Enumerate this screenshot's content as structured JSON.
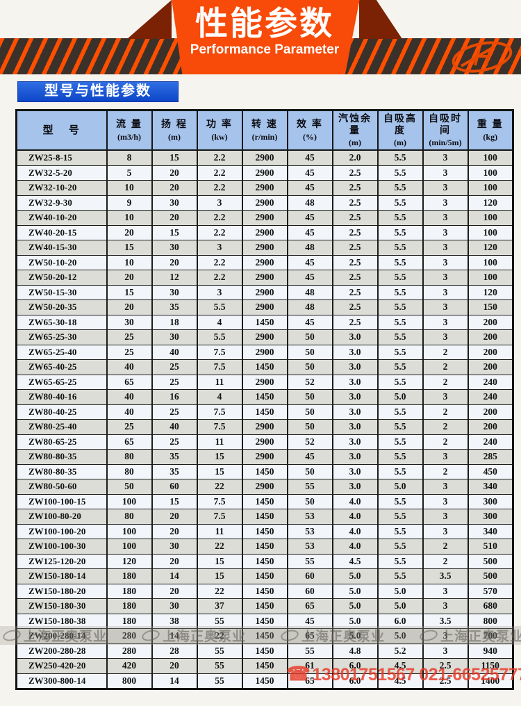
{
  "banner": {
    "title": "性能参数",
    "subtitle": "Performance Parameter"
  },
  "section_label": "型号与性能参数",
  "table": {
    "columns": [
      {
        "name": "型  号",
        "unit": ""
      },
      {
        "name": "流 量",
        "unit": "(m3/h)"
      },
      {
        "name": "扬 程",
        "unit": "(m)"
      },
      {
        "name": "功 率",
        "unit": "(kw)"
      },
      {
        "name": "转 速",
        "unit": "(r/min)"
      },
      {
        "name": "效 率",
        "unit": "(%)"
      },
      {
        "name": "汽蚀余量",
        "unit": "(m)"
      },
      {
        "name": "自吸高度",
        "unit": "(m)"
      },
      {
        "name": "自吸时间",
        "unit": "(min/5m)"
      },
      {
        "name": "重 量",
        "unit": "(kg)"
      }
    ],
    "rows": [
      [
        "ZW25-8-15",
        "8",
        "15",
        "2.2",
        "2900",
        "45",
        "2.0",
        "5.5",
        "3",
        "100"
      ],
      [
        "ZW32-5-20",
        "5",
        "20",
        "2.2",
        "2900",
        "45",
        "2.5",
        "5.5",
        "3",
        "100"
      ],
      [
        "ZW32-10-20",
        "10",
        "20",
        "2.2",
        "2900",
        "45",
        "2.5",
        "5.5",
        "3",
        "100"
      ],
      [
        "ZW32-9-30",
        "9",
        "30",
        "3",
        "2900",
        "48",
        "2.5",
        "5.5",
        "3",
        "120"
      ],
      [
        "ZW40-10-20",
        "10",
        "20",
        "2.2",
        "2900",
        "45",
        "2.5",
        "5.5",
        "3",
        "100"
      ],
      [
        "ZW40-20-15",
        "20",
        "15",
        "2.2",
        "2900",
        "45",
        "2.5",
        "5.5",
        "3",
        "100"
      ],
      [
        "ZW40-15-30",
        "15",
        "30",
        "3",
        "2900",
        "48",
        "2.5",
        "5.5",
        "3",
        "120"
      ],
      [
        "ZW50-10-20",
        "10",
        "20",
        "2.2",
        "2900",
        "45",
        "2.5",
        "5.5",
        "3",
        "100"
      ],
      [
        "ZW50-20-12",
        "20",
        "12",
        "2.2",
        "2900",
        "45",
        "2.5",
        "5.5",
        "3",
        "100"
      ],
      [
        "ZW50-15-30",
        "15",
        "30",
        "3",
        "2900",
        "48",
        "2.5",
        "5.5",
        "3",
        "120"
      ],
      [
        "ZW50-20-35",
        "20",
        "35",
        "5.5",
        "2900",
        "48",
        "2.5",
        "5.5",
        "3",
        "150"
      ],
      [
        "ZW65-30-18",
        "30",
        "18",
        "4",
        "1450",
        "45",
        "2.5",
        "5.5",
        "3",
        "200"
      ],
      [
        "ZW65-25-30",
        "25",
        "30",
        "5.5",
        "2900",
        "50",
        "3.0",
        "5.5",
        "3",
        "200"
      ],
      [
        "ZW65-25-40",
        "25",
        "40",
        "7.5",
        "2900",
        "50",
        "3.0",
        "5.5",
        "2",
        "200"
      ],
      [
        "ZW65-40-25",
        "40",
        "25",
        "7.5",
        "1450",
        "50",
        "3.0",
        "5.5",
        "2",
        "200"
      ],
      [
        "ZW65-65-25",
        "65",
        "25",
        "11",
        "2900",
        "52",
        "3.0",
        "5.5",
        "2",
        "240"
      ],
      [
        "ZW80-40-16",
        "40",
        "16",
        "4",
        "1450",
        "50",
        "3.0",
        "5.0",
        "3",
        "240"
      ],
      [
        "ZW80-40-25",
        "40",
        "25",
        "7.5",
        "1450",
        "50",
        "3.0",
        "5.5",
        "2",
        "200"
      ],
      [
        "ZW80-25-40",
        "25",
        "40",
        "7.5",
        "2900",
        "50",
        "3.0",
        "5.5",
        "2",
        "200"
      ],
      [
        "ZW80-65-25",
        "65",
        "25",
        "11",
        "2900",
        "52",
        "3.0",
        "5.5",
        "2",
        "240"
      ],
      [
        "ZW80-80-35",
        "80",
        "35",
        "15",
        "2900",
        "45",
        "3.0",
        "5.5",
        "3",
        "285"
      ],
      [
        "ZW80-80-35",
        "80",
        "35",
        "15",
        "1450",
        "50",
        "3.0",
        "5.5",
        "2",
        "450"
      ],
      [
        "ZW80-50-60",
        "50",
        "60",
        "22",
        "2900",
        "55",
        "3.0",
        "5.0",
        "3",
        "340"
      ],
      [
        "ZW100-100-15",
        "100",
        "15",
        "7.5",
        "1450",
        "50",
        "4.0",
        "5.5",
        "3",
        "300"
      ],
      [
        "ZW100-80-20",
        "80",
        "20",
        "7.5",
        "1450",
        "53",
        "4.0",
        "5.5",
        "3",
        "300"
      ],
      [
        "ZW100-100-20",
        "100",
        "20",
        "11",
        "1450",
        "53",
        "4.0",
        "5.5",
        "3",
        "340"
      ],
      [
        "ZW100-100-30",
        "100",
        "30",
        "22",
        "1450",
        "53",
        "4.0",
        "5.5",
        "2",
        "510"
      ],
      [
        "ZW125-120-20",
        "120",
        "20",
        "15",
        "1450",
        "55",
        "4.5",
        "5.5",
        "2",
        "500"
      ],
      [
        "ZW150-180-14",
        "180",
        "14",
        "15",
        "1450",
        "60",
        "5.0",
        "5.5",
        "3.5",
        "500"
      ],
      [
        "ZW150-180-20",
        "180",
        "20",
        "22",
        "1450",
        "60",
        "5.0",
        "5.0",
        "3",
        "570"
      ],
      [
        "ZW150-180-30",
        "180",
        "30",
        "37",
        "1450",
        "65",
        "5.0",
        "5.0",
        "3",
        "680"
      ],
      [
        "ZW150-180-38",
        "180",
        "38",
        "55",
        "1450",
        "45",
        "5.0",
        "6.0",
        "3.5",
        "800"
      ],
      [
        "ZW200-280-14",
        "280",
        "14",
        "22",
        "1450",
        "65",
        "5.0",
        "5.0",
        "3",
        "700"
      ],
      [
        "ZW200-280-28",
        "280",
        "28",
        "55",
        "1450",
        "55",
        "4.8",
        "5.2",
        "3",
        "940"
      ],
      [
        "ZW250-420-20",
        "420",
        "20",
        "55",
        "1450",
        "61",
        "6.0",
        "4.5",
        "2.5",
        "1150"
      ],
      [
        "ZW300-800-14",
        "800",
        "14",
        "55",
        "1450",
        "65",
        "6.0",
        "4.5",
        "2.5",
        "1400"
      ]
    ]
  },
  "watermarks": {
    "band_text": "上海正奥泵业",
    "band_repeats": 4,
    "phone_icon_glyph": "☎",
    "phone_text": "13801751567 021-66525777"
  },
  "colors": {
    "banner_orange": "#f84a08",
    "banner_maroon": "#7b2104",
    "band_dark": "#3a322a",
    "stripe_orange": "#fe4e00",
    "section_blue": "#0c46c8",
    "header_blue": "#a5c3eb",
    "row_gray": "#dcddd7",
    "row_light": "#f2f6fa",
    "watermark_red": "#e83926"
  }
}
